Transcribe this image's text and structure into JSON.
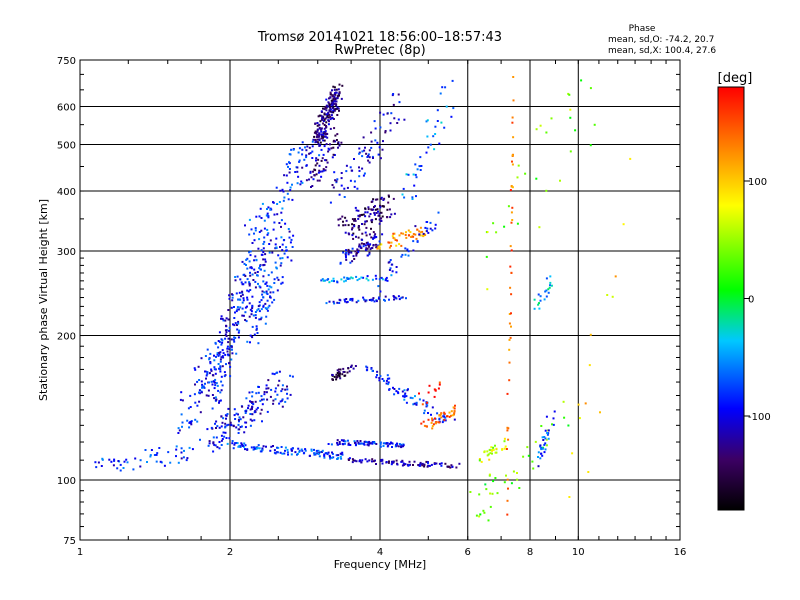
{
  "chart_data": {
    "type": "scatter",
    "title": "Tromsø 20141021 18:56:00–18:57:43",
    "subtitle": "RwPretec (8p)",
    "xlabel": "Frequency [MHz]",
    "ylabel": "Stationary phase Virtual Height [km]",
    "x_scale": "log2",
    "y_scale": "log",
    "xlim": [
      1,
      16
    ],
    "ylim": [
      75,
      750
    ],
    "x_ticks": [
      "1",
      "2",
      "4",
      "6",
      "8",
      "10",
      "16"
    ],
    "x_tick_values": [
      1,
      2,
      4,
      6,
      8,
      10,
      16
    ],
    "y_ticks": [
      "75",
      "100",
      "200",
      "300",
      "400",
      "500",
      "600",
      "750"
    ],
    "y_tick_values": [
      75,
      100,
      200,
      300,
      400,
      500,
      600,
      750
    ],
    "grid": true,
    "phase_stats": {
      "heading": "Phase",
      "o_line": "mean, sd,O: -74.2, 20.7",
      "x_line": "mean, sd,X: 100.4, 27.6"
    },
    "colorbar": {
      "label": "[deg]",
      "range": [
        -180,
        180
      ],
      "ticks": [
        "100",
        "0",
        "-100"
      ],
      "tick_values": [
        100,
        0,
        -100
      ]
    },
    "colors": {
      "deep_blue": "#0000aa",
      "blue": "#1e50e6",
      "cyan": "#14bee6",
      "yellow": "#e6e600",
      "orange": "#ff8000",
      "red": "#ff0000"
    },
    "traces": [
      {
        "x": [
          1.05,
          1.3
        ],
        "y": [
          107,
          109
        ],
        "phase": -80,
        "n": 22,
        "jx": 0.03,
        "jy": 0.03
      },
      {
        "x": [
          1.3,
          1.8
        ],
        "y": [
          110,
          115
        ],
        "phase": -85,
        "n": 30,
        "jx": 0.03,
        "jy": 0.04
      },
      {
        "x": [
          1.6,
          2.0
        ],
        "y": [
          130,
          190
        ],
        "phase": -90,
        "n": 80,
        "jx": 0.06,
        "jy": 0.1
      },
      {
        "x": [
          1.8,
          2.3
        ],
        "y": [
          150,
          300
        ],
        "phase": -90,
        "n": 220,
        "jx": 0.08,
        "jy": 0.06
      },
      {
        "x": [
          1.8,
          2.6
        ],
        "y": [
          120,
          160
        ],
        "phase": -95,
        "n": 160,
        "jx": 0.07,
        "jy": 0.06
      },
      {
        "x": [
          2.0,
          3.4
        ],
        "y": [
          118,
          112
        ],
        "phase": -80,
        "n": 120,
        "jx": 0.02,
        "jy": 0.015
      },
      {
        "x": [
          2.2,
          2.6
        ],
        "y": [
          200,
          320
        ],
        "phase": -85,
        "n": 120,
        "jx": 0.06,
        "jy": 0.08
      },
      {
        "x": [
          2.2,
          2.8
        ],
        "y": [
          320,
          450
        ],
        "phase": -80,
        "n": 70,
        "jx": 0.06,
        "jy": 0.06
      },
      {
        "x": [
          2.6,
          3.1
        ],
        "y": [
          450,
          520
        ],
        "phase": -95,
        "n": 50,
        "jx": 0.04,
        "jy": 0.05
      },
      {
        "x": [
          3.0,
          3.3
        ],
        "y": [
          520,
          640
        ],
        "phase": -130,
        "n": 190,
        "jx": 0.03,
        "jy": 0.05
      },
      {
        "x": [
          2.9,
          3.3
        ],
        "y": [
          420,
          520
        ],
        "phase": -120,
        "n": 60,
        "jx": 0.03,
        "jy": 0.05
      },
      {
        "x": [
          3.4,
          4.2
        ],
        "y": [
          330,
          380
        ],
        "phase": -135,
        "n": 110,
        "jx": 0.05,
        "jy": 0.05
      },
      {
        "x": [
          3.4,
          4.0
        ],
        "y": [
          290,
          320
        ],
        "phase": -110,
        "n": 80,
        "jx": 0.05,
        "jy": 0.03
      },
      {
        "x": [
          3.3,
          4.4
        ],
        "y": [
          400,
          600
        ],
        "phase": -100,
        "n": 80,
        "jx": 0.06,
        "jy": 0.06
      },
      {
        "x": [
          4.0,
          4.9
        ],
        "y": [
          310,
          330
        ],
        "phase": 120,
        "n": 50,
        "jx": 0.04,
        "jy": 0.03
      },
      {
        "x": [
          4.0,
          5.1
        ],
        "y": [
          250,
          350
        ],
        "phase": -90,
        "n": 40,
        "jx": 0.05,
        "jy": 0.04
      },
      {
        "x": [
          4.5,
          5.6
        ],
        "y": [
          400,
          640
        ],
        "phase": -60,
        "n": 40,
        "jx": 0.05,
        "jy": 0.06
      },
      {
        "x": [
          3.0,
          4.3
        ],
        "y": [
          260,
          265
        ],
        "phase": -60,
        "n": 40,
        "jx": 0.02,
        "jy": 0.01
      },
      {
        "x": [
          3.1,
          4.5
        ],
        "y": [
          235,
          240
        ],
        "phase": -90,
        "n": 50,
        "jx": 0.02,
        "jy": 0.01
      },
      {
        "x": [
          3.2,
          3.6
        ],
        "y": [
          165,
          170
        ],
        "phase": -140,
        "n": 40,
        "jx": 0.02,
        "jy": 0.02
      },
      {
        "x": [
          3.8,
          5.6
        ],
        "y": [
          170,
          130
        ],
        "phase": -80,
        "n": 80,
        "jx": 0.04,
        "jy": 0.02
      },
      {
        "x": [
          3.2,
          4.5
        ],
        "y": [
          120,
          118
        ],
        "phase": -90,
        "n": 80,
        "jx": 0.03,
        "jy": 0.01
      },
      {
        "x": [
          3.4,
          5.7
        ],
        "y": [
          110,
          107
        ],
        "phase": -120,
        "n": 90,
        "jx": 0.02,
        "jy": 0.01
      },
      {
        "x": [
          4.8,
          5.7
        ],
        "y": [
          128,
          140
        ],
        "phase": 140,
        "n": 40,
        "jx": 0.02,
        "jy": 0.02
      },
      {
        "x": [
          4.8,
          5.4
        ],
        "y": [
          145,
          160
        ],
        "phase": 170,
        "n": 12,
        "jx": 0.02,
        "jy": 0.03
      },
      {
        "x": [
          6.2,
          9.5
        ],
        "y": [
          85,
          140
        ],
        "phase": 30,
        "n": 40,
        "jx": 0.05,
        "jy": 0.08
      },
      {
        "x": [
          6.3,
          7.2
        ],
        "y": [
          110,
          120
        ],
        "phase": 60,
        "n": 30,
        "jx": 0.02,
        "jy": 0.02
      },
      {
        "x": [
          7.2,
          7.4
        ],
        "y": [
          90,
          650
        ],
        "phase": 140,
        "n": 45,
        "jx": 0.005,
        "jy": 0.2
      },
      {
        "x": [
          8.4,
          8.9
        ],
        "y": [
          110,
          140
        ],
        "phase": -80,
        "n": 30,
        "jx": 0.02,
        "jy": 0.03
      },
      {
        "x": [
          8.2,
          8.9
        ],
        "y": [
          230,
          260
        ],
        "phase": -40,
        "n": 20,
        "jx": 0.03,
        "jy": 0.03
      },
      {
        "x": [
          6.5,
          11.0
        ],
        "y": [
          300,
          650
        ],
        "phase": 40,
        "n": 30,
        "jx": 0.05,
        "jy": 0.2
      },
      {
        "x": [
          9.5,
          13.0
        ],
        "y": [
          90,
          450
        ],
        "phase": 90,
        "n": 14,
        "jx": 0.06,
        "jy": 0.2
      }
    ]
  }
}
